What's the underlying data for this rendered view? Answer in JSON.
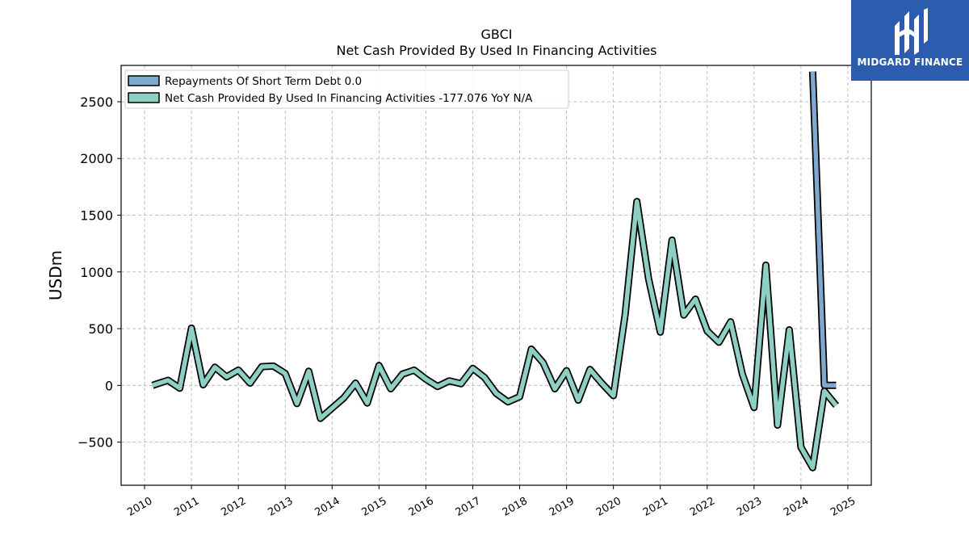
{
  "chart_data": {
    "type": "line",
    "title": "GBCI",
    "subtitle": "Net Cash Provided By Used In Financing Activities",
    "ylabel": "USDm",
    "xlabel": "",
    "ylim": [
      -880,
      2820
    ],
    "xlim": [
      2009.5,
      2025.5
    ],
    "yticks": [
      -500,
      0,
      500,
      1000,
      1500,
      2000,
      2500
    ],
    "ytick_labels": [
      "−500",
      "0",
      "500",
      "1000",
      "1500",
      "2000",
      "2500"
    ],
    "xticks": [
      2010,
      2011,
      2012,
      2013,
      2014,
      2015,
      2016,
      2017,
      2018,
      2019,
      2020,
      2021,
      2022,
      2023,
      2024,
      2025
    ],
    "xtick_labels": [
      "2010",
      "2011",
      "2012",
      "2013",
      "2014",
      "2015",
      "2016",
      "2017",
      "2018",
      "2019",
      "2020",
      "2021",
      "2022",
      "2023",
      "2024",
      "2025"
    ],
    "grid": true,
    "legend_position": "top-left",
    "series": [
      {
        "name": "Repayments Of Short Term Debt",
        "legend_label": "Repayments Of Short Term Debt  0.0",
        "color": "#7fa8cf",
        "x": [
          2024.25,
          2024.5,
          2024.75
        ],
        "y": [
          2765,
          0,
          0
        ]
      },
      {
        "name": "Net Cash Provided By Used In Financing Activities",
        "legend_label": "Net Cash Provided By Used In Financing Activities  -177.076 YoY N/A",
        "color": "#8ecfc4",
        "x": [
          2010.17,
          2010.5,
          2010.75,
          2011.0,
          2011.25,
          2011.5,
          2011.75,
          2012.0,
          2012.25,
          2012.5,
          2012.75,
          2013.0,
          2013.25,
          2013.5,
          2013.75,
          2014.0,
          2014.25,
          2014.5,
          2014.75,
          2015.0,
          2015.25,
          2015.5,
          2015.75,
          2016.0,
          2016.25,
          2016.5,
          2016.75,
          2017.0,
          2017.25,
          2017.5,
          2017.75,
          2018.0,
          2018.25,
          2018.5,
          2018.75,
          2019.0,
          2019.25,
          2019.5,
          2019.75,
          2020.0,
          2020.25,
          2020.5,
          2020.75,
          2021.0,
          2021.25,
          2021.5,
          2021.75,
          2022.0,
          2022.25,
          2022.5,
          2022.75,
          2023.0,
          2023.25,
          2023.5,
          2023.75,
          2024.0,
          2024.25,
          2024.5,
          2024.75
        ],
        "y": [
          0,
          45,
          -25,
          505,
          5,
          160,
          75,
          135,
          20,
          165,
          170,
          105,
          -160,
          125,
          -290,
          -200,
          -110,
          20,
          -155,
          175,
          -30,
          100,
          135,
          55,
          -10,
          40,
          15,
          150,
          70,
          -70,
          -145,
          -100,
          320,
          200,
          -30,
          130,
          -130,
          140,
          20,
          -90,
          625,
          1620,
          940,
          470,
          1280,
          620,
          760,
          480,
          380,
          560,
          100,
          -195,
          1060,
          -350,
          490,
          -545,
          -725,
          -50,
          -177
        ]
      }
    ]
  },
  "logo": {
    "text": "MIDGARD FINANCE"
  }
}
